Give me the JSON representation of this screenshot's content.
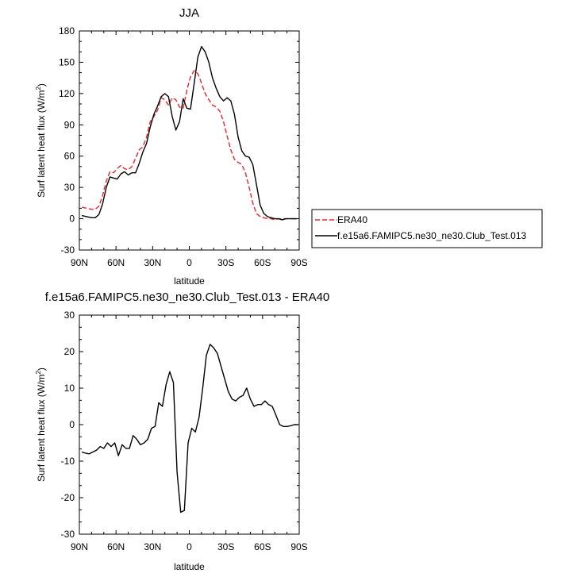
{
  "chart_data": [
    {
      "type": "line",
      "title": "JJA",
      "xlabel": "latitude",
      "ylabel": "Surf latent heat flux (W/m",
      "ylabel_sup": "2",
      "ylabel_close": ")",
      "xlim": [
        90,
        -90
      ],
      "ylim": [
        -30,
        180
      ],
      "xticks": [
        90,
        60,
        30,
        0,
        -30,
        -60,
        -90
      ],
      "xtick_labels": [
        "90N",
        "60N",
        "30N",
        "0",
        "30S",
        "60S",
        "90S"
      ],
      "yticks": [
        -30,
        0,
        30,
        60,
        90,
        120,
        150,
        180
      ],
      "ytick_labels": [
        "-30",
        "0",
        "30",
        "60",
        "90",
        "120",
        "150",
        "180"
      ],
      "legend_placement": "right",
      "series": [
        {
          "name": "ERA40",
          "color": "#e8262c",
          "dashed": true,
          "x": [
            88,
            84,
            80,
            77,
            74,
            71,
            68,
            65,
            62,
            59,
            56,
            53,
            50,
            47,
            44,
            41,
            38,
            35,
            32,
            29,
            26,
            23,
            20,
            17,
            14,
            11,
            8,
            5,
            2,
            -1,
            -4,
            -7,
            -10,
            -13,
            -16,
            -19,
            -22,
            -25,
            -28,
            -31,
            -34,
            -37,
            -40,
            -43,
            -46,
            -49,
            -52,
            -55,
            -58,
            -61,
            -64,
            -67,
            -70,
            -73,
            -76,
            -79,
            -82,
            -85,
            -88
          ],
          "y": [
            11,
            10,
            9,
            9,
            12,
            22,
            36,
            45,
            44,
            48,
            51,
            48,
            47,
            50,
            58,
            66,
            69,
            78,
            93,
            98,
            104,
            116,
            114,
            109,
            116,
            114,
            107,
            106,
            123,
            136,
            142,
            139,
            130,
            120,
            114,
            109,
            107,
            103,
            93,
            79,
            66,
            57,
            54,
            52,
            44,
            30,
            15,
            5,
            2,
            1,
            0,
            0,
            -1,
            0,
            0,
            0,
            0,
            0,
            0
          ]
        },
        {
          "name": "f.e15a6.FAMIPC5.ne30_ne30.Club_Test.013",
          "color": "#000000",
          "dashed": false,
          "x": [
            88,
            84,
            80,
            77,
            74,
            71,
            68,
            65,
            62,
            59,
            56,
            53,
            50,
            47,
            44,
            41,
            38,
            35,
            32,
            29,
            26,
            23,
            20,
            17,
            14,
            11,
            8,
            5,
            2,
            -1,
            -4,
            -7,
            -10,
            -13,
            -16,
            -19,
            -22,
            -25,
            -28,
            -31,
            -34,
            -37,
            -40,
            -43,
            -46,
            -49,
            -52,
            -55,
            -58,
            -61,
            -64,
            -67,
            -70,
            -73,
            -76,
            -79,
            -82,
            -85,
            -88
          ],
          "y": [
            3,
            2,
            1,
            1,
            4,
            14,
            30,
            40,
            39,
            38,
            43,
            45,
            42,
            44,
            44,
            53,
            64,
            72,
            88,
            100,
            108,
            117,
            120,
            117,
            98,
            85,
            93,
            115,
            106,
            105,
            130,
            155,
            165,
            160,
            150,
            135,
            125,
            117,
            113,
            116,
            113,
            100,
            78,
            65,
            60,
            59,
            52,
            33,
            13,
            5,
            2,
            1,
            0,
            0,
            -1,
            0,
            0,
            0,
            0
          ]
        }
      ]
    },
    {
      "type": "line",
      "title": "f.e15a6.FAMIPC5.ne30_ne30.Club_Test.013 - ERA40",
      "xlabel": "latitude",
      "ylabel": "Surf latent heat flux (W/m",
      "ylabel_sup": "2",
      "ylabel_close": ")",
      "xlim": [
        90,
        -90
      ],
      "ylim": [
        -30,
        30
      ],
      "xticks": [
        90,
        60,
        30,
        0,
        -30,
        -60,
        -90
      ],
      "xtick_labels": [
        "90N",
        "60N",
        "30N",
        "0",
        "30S",
        "60S",
        "90S"
      ],
      "yticks": [
        -30,
        -20,
        -10,
        0,
        10,
        20,
        30
      ],
      "ytick_labels": [
        "-30",
        "-20",
        "-10",
        "0",
        "10",
        "20",
        "30"
      ],
      "series": [
        {
          "color": "#000000",
          "dashed": false,
          "x": [
            88,
            85,
            82,
            79,
            76,
            73,
            70,
            67,
            64,
            61,
            58,
            55,
            52,
            49,
            46,
            43,
            40,
            37,
            34,
            31,
            28,
            25,
            22,
            19,
            16,
            13,
            10,
            7,
            4,
            1,
            -2,
            -5,
            -8,
            -11,
            -14,
            -17,
            -20,
            -23,
            -26,
            -29,
            -32,
            -35,
            -38,
            -41,
            -44,
            -47,
            -50,
            -53,
            -56,
            -59,
            -62,
            -65,
            -68,
            -71,
            -74,
            -77,
            -80,
            -83,
            -86,
            -89
          ],
          "y": [
            -7.5,
            -7.8,
            -8.0,
            -7.5,
            -7.0,
            -6.0,
            -6.5,
            -5.0,
            -6.0,
            -5.0,
            -8.5,
            -5.5,
            -6.5,
            -6.5,
            -3.0,
            -4.0,
            -5.5,
            -5.0,
            -4.0,
            -1.0,
            -0.5,
            6.0,
            5.0,
            11.0,
            14.5,
            11.5,
            -13.0,
            -24.0,
            -23.5,
            -5.0,
            -1.0,
            -2.0,
            2.0,
            10.0,
            19.0,
            22.0,
            21.0,
            19.5,
            16.0,
            12.5,
            9.0,
            7.0,
            6.5,
            7.5,
            8.0,
            10.0,
            7.0,
            5.0,
            5.5,
            5.5,
            6.5,
            5.5,
            5.0,
            2.5,
            0.0,
            -0.5,
            -0.5,
            -0.3,
            0.0,
            0.0
          ]
        }
      ]
    }
  ]
}
